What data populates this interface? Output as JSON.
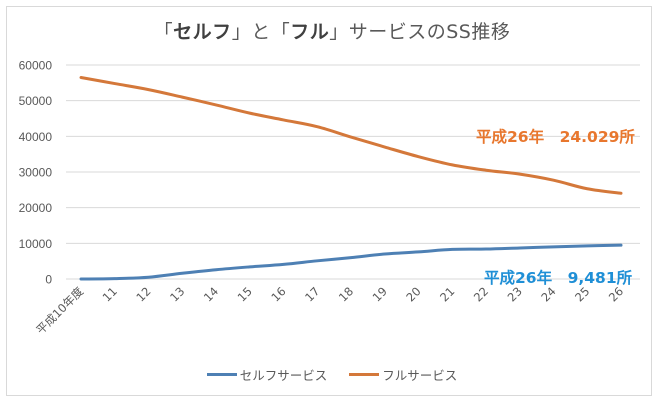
{
  "chart_data": {
    "type": "line",
    "title": "「セルフ」と「フル」サービスのSS推移",
    "title_parts": [
      {
        "text": "「",
        "bold": false
      },
      {
        "text": "セルフ",
        "bold": true
      },
      {
        "text": "」と「",
        "bold": false
      },
      {
        "text": "フル",
        "bold": true
      },
      {
        "text": "」サービスのSS推移",
        "bold": false
      }
    ],
    "xlabel": "",
    "ylabel": "",
    "categories": [
      "平成10年度",
      "11",
      "12",
      "13",
      "14",
      "15",
      "16",
      "17",
      "18",
      "19",
      "20",
      "21",
      "22",
      "23",
      "24",
      "25",
      "26"
    ],
    "ylim": [
      0,
      60000
    ],
    "yticks": [
      0,
      10000,
      20000,
      30000,
      40000,
      50000,
      60000
    ],
    "ytick_labels": [
      "0",
      "10000",
      "20000",
      "30000",
      "40000",
      "50000",
      "60000"
    ],
    "grid": true,
    "legend_position": "bottom",
    "series": [
      {
        "name": "セルフサービス",
        "color": "#4e80b4",
        "values": [
          0,
          100,
          500,
          1600,
          2600,
          3400,
          4100,
          5100,
          6000,
          7000,
          7600,
          8300,
          8400,
          8700,
          9000,
          9300,
          9481
        ]
      },
      {
        "name": "フルサービス",
        "color": "#d4783a",
        "values": [
          56500,
          54800,
          53100,
          51000,
          48800,
          46500,
          44600,
          42700,
          39800,
          37000,
          34300,
          32000,
          30500,
          29400,
          27700,
          25300,
          24029
        ]
      }
    ],
    "annotations": [
      {
        "text": "平成26年　24.029所",
        "series": "フルサービス",
        "color": "#e8772e"
      },
      {
        "text": "平成26年　9,481所",
        "series": "セルフサービス",
        "color": "#1f8fd6"
      }
    ]
  }
}
